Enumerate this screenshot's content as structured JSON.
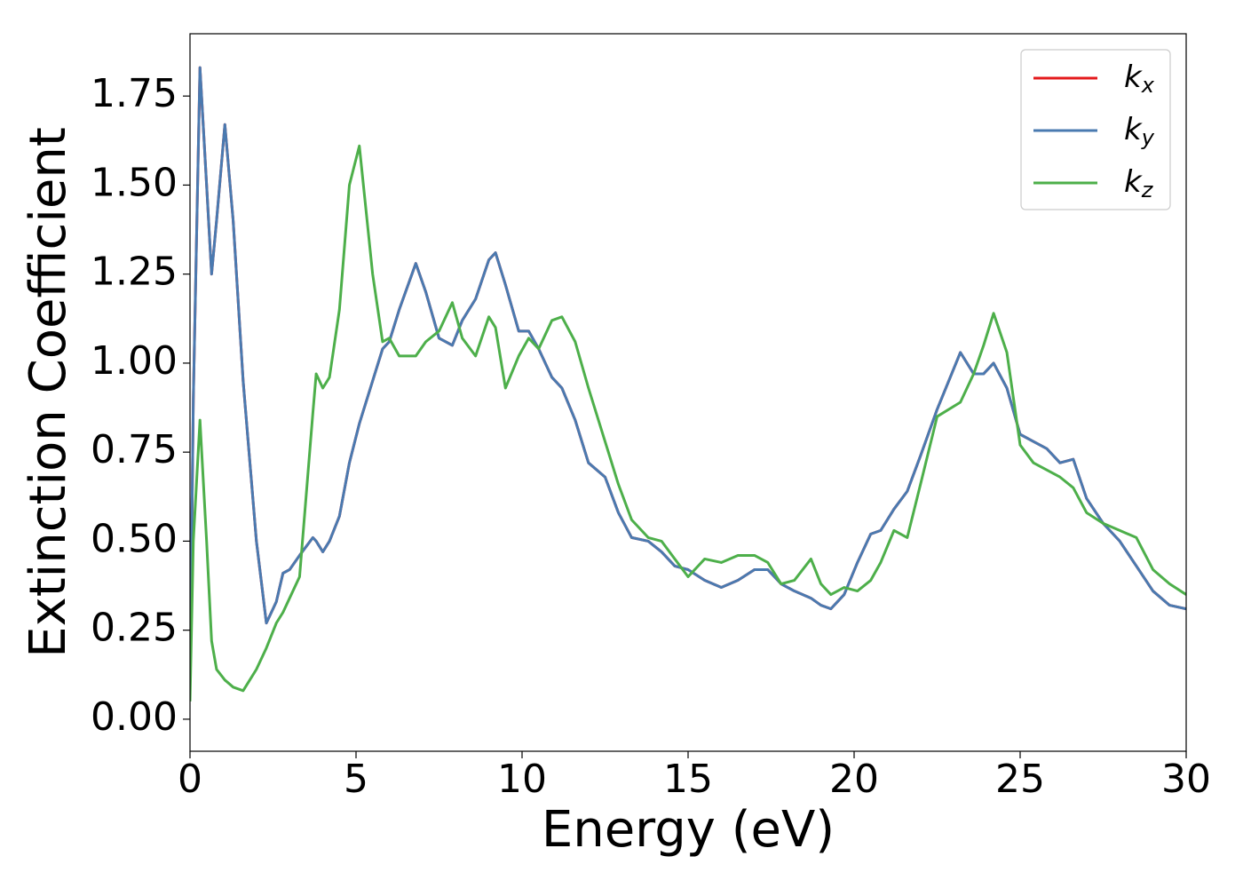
{
  "chart_data": {
    "type": "line",
    "xlabel": "Energy (eV)",
    "ylabel": "Extinction Coefficient",
    "xlim": [
      0,
      30
    ],
    "ylim": [
      -0.09,
      1.925
    ],
    "xticks": [
      0,
      5,
      10,
      15,
      20,
      25,
      30
    ],
    "yticks": [
      {
        "value": 0,
        "label": "0.00"
      },
      {
        "value": 0.25,
        "label": "0.25"
      },
      {
        "value": 0.5,
        "label": "0.50"
      },
      {
        "value": 0.75,
        "label": "0.75"
      },
      {
        "value": 1,
        "label": "1.00"
      },
      {
        "value": 1.25,
        "label": "1.25"
      },
      {
        "value": 1.5,
        "label": "1.50"
      },
      {
        "value": 1.75,
        "label": "1.75"
      }
    ],
    "legend": "upper right",
    "x": [
      0,
      0.1,
      0.3,
      0.5,
      0.65,
      0.8,
      1.05,
      1.3,
      1.6,
      2.0,
      2.3,
      2.6,
      2.8,
      3.0,
      3.3,
      3.7,
      3.8,
      4.0,
      4.2,
      4.5,
      4.8,
      5.1,
      5.5,
      5.8,
      6.0,
      6.3,
      6.8,
      7.1,
      7.5,
      7.9,
      8.2,
      8.6,
      9.0,
      9.2,
      9.5,
      9.9,
      10.2,
      10.5,
      10.9,
      11.2,
      11.6,
      12.0,
      12.5,
      12.9,
      13.3,
      13.8,
      14.2,
      14.6,
      15.0,
      15.5,
      16.0,
      16.5,
      17.0,
      17.4,
      17.8,
      18.2,
      18.7,
      19.0,
      19.3,
      19.7,
      20.1,
      20.5,
      20.8,
      21.2,
      21.6,
      22.0,
      22.5,
      23.2,
      23.6,
      23.9,
      24.2,
      24.6,
      25.0,
      25.4,
      25.8,
      26.2,
      26.6,
      27.0,
      27.5,
      28.0,
      28.5,
      29.0,
      29.5,
      30.0
    ],
    "series": [
      {
        "name": "kx",
        "color": "#e41a1c",
        "values": [
          0.1,
          0.9,
          1.83,
          1.5,
          1.25,
          1.4,
          1.67,
          1.4,
          0.95,
          0.5,
          0.27,
          0.33,
          0.41,
          0.42,
          0.46,
          0.51,
          0.5,
          0.47,
          0.5,
          0.57,
          0.72,
          0.83,
          0.95,
          1.04,
          1.06,
          1.15,
          1.28,
          1.2,
          1.07,
          1.05,
          1.12,
          1.18,
          1.29,
          1.31,
          1.22,
          1.09,
          1.09,
          1.04,
          0.96,
          0.93,
          0.84,
          0.72,
          0.68,
          0.58,
          0.51,
          0.5,
          0.47,
          0.43,
          0.42,
          0.39,
          0.37,
          0.39,
          0.42,
          0.42,
          0.38,
          0.36,
          0.34,
          0.32,
          0.31,
          0.35,
          0.44,
          0.52,
          0.53,
          0.59,
          0.64,
          0.74,
          0.87,
          1.03,
          0.97,
          0.97,
          1.0,
          0.93,
          0.8,
          0.78,
          0.76,
          0.72,
          0.73,
          0.62,
          0.55,
          0.5,
          0.43,
          0.36,
          0.32,
          0.31
        ]
      },
      {
        "name": "ky",
        "color": "#4a7ab0",
        "values": [
          0.1,
          0.9,
          1.83,
          1.5,
          1.25,
          1.4,
          1.67,
          1.4,
          0.95,
          0.5,
          0.27,
          0.33,
          0.41,
          0.42,
          0.46,
          0.51,
          0.5,
          0.47,
          0.5,
          0.57,
          0.72,
          0.83,
          0.95,
          1.04,
          1.06,
          1.15,
          1.28,
          1.2,
          1.07,
          1.05,
          1.12,
          1.18,
          1.29,
          1.31,
          1.22,
          1.09,
          1.09,
          1.04,
          0.96,
          0.93,
          0.84,
          0.72,
          0.68,
          0.58,
          0.51,
          0.5,
          0.47,
          0.43,
          0.42,
          0.39,
          0.37,
          0.39,
          0.42,
          0.42,
          0.38,
          0.36,
          0.34,
          0.32,
          0.31,
          0.35,
          0.44,
          0.52,
          0.53,
          0.59,
          0.64,
          0.74,
          0.87,
          1.03,
          0.97,
          0.97,
          1.0,
          0.93,
          0.8,
          0.78,
          0.76,
          0.72,
          0.73,
          0.62,
          0.55,
          0.5,
          0.43,
          0.36,
          0.32,
          0.31
        ]
      },
      {
        "name": "kz",
        "color": "#4daf4a",
        "values": [
          0.05,
          0.5,
          0.84,
          0.5,
          0.22,
          0.14,
          0.11,
          0.09,
          0.08,
          0.14,
          0.2,
          0.27,
          0.3,
          0.34,
          0.4,
          0.86,
          0.97,
          0.93,
          0.96,
          1.15,
          1.5,
          1.61,
          1.25,
          1.06,
          1.07,
          1.02,
          1.02,
          1.06,
          1.09,
          1.17,
          1.07,
          1.02,
          1.13,
          1.1,
          0.93,
          1.02,
          1.07,
          1.04,
          1.12,
          1.13,
          1.06,
          0.93,
          0.78,
          0.66,
          0.56,
          0.51,
          0.5,
          0.45,
          0.4,
          0.45,
          0.44,
          0.46,
          0.46,
          0.44,
          0.38,
          0.39,
          0.45,
          0.38,
          0.35,
          0.37,
          0.36,
          0.39,
          0.44,
          0.53,
          0.51,
          0.66,
          0.85,
          0.89,
          0.97,
          1.05,
          1.14,
          1.03,
          0.77,
          0.72,
          0.7,
          0.68,
          0.65,
          0.58,
          0.55,
          0.53,
          0.51,
          0.42,
          0.38,
          0.35
        ]
      }
    ]
  }
}
